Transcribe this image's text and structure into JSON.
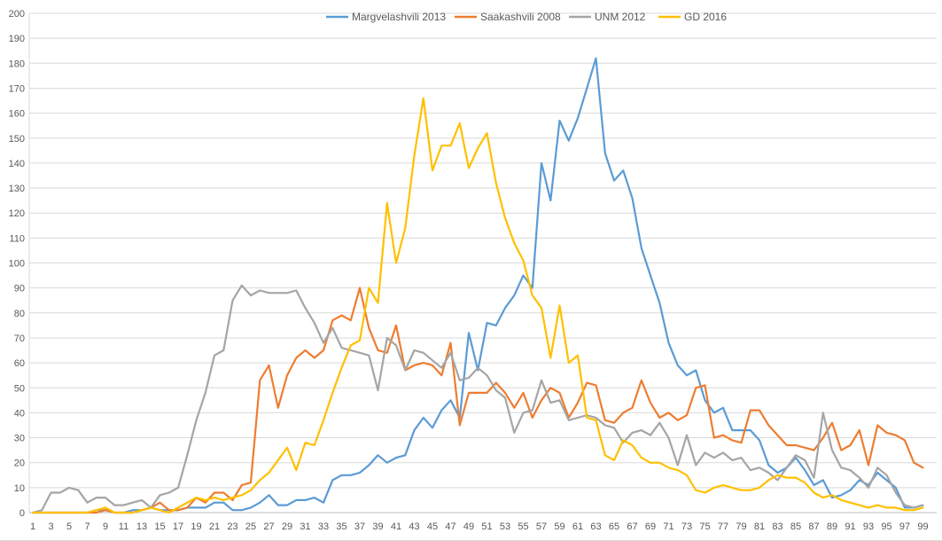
{
  "chart_data": {
    "type": "line",
    "title": "",
    "x_min": 1,
    "x_max": 99,
    "x_tick_step": 2,
    "x_tick_labels": [
      "1",
      "3",
      "5",
      "7",
      "9",
      "11",
      "13",
      "15",
      "17",
      "19",
      "21",
      "23",
      "25",
      "27",
      "29",
      "31",
      "33",
      "35",
      "37",
      "39",
      "41",
      "43",
      "45",
      "47",
      "49",
      "51",
      "53",
      "55",
      "57",
      "59",
      "61",
      "63",
      "65",
      "67",
      "69",
      "71",
      "73",
      "75",
      "77",
      "79",
      "81",
      "83",
      "85",
      "87",
      "89",
      "91",
      "93",
      "95",
      "97",
      "99"
    ],
    "y_ticks": [
      0,
      10,
      20,
      30,
      40,
      50,
      60,
      70,
      80,
      90,
      100,
      110,
      120,
      130,
      140,
      150,
      160,
      170,
      180,
      190,
      200
    ],
    "ylim": [
      0,
      200
    ],
    "grid": "horizontal",
    "legend_position": "top-center",
    "background_color": "#ffffff",
    "gridline_color": "#d9d9d9",
    "axis_line_color": "#bfbfbf",
    "axis_label_color": "#595959",
    "series": [
      {
        "name": "Margvelashvili 2013",
        "color": "#5b9bd5",
        "values": [
          0,
          0,
          0,
          0,
          0,
          0,
          0,
          1,
          1,
          0,
          0,
          1,
          1,
          2,
          1,
          1,
          1,
          2,
          2,
          2,
          4,
          4,
          1,
          1,
          2,
          4,
          7,
          3,
          3,
          5,
          5,
          6,
          4,
          13,
          15,
          15,
          16,
          19,
          23,
          20,
          22,
          23,
          33,
          38,
          34,
          41,
          45,
          38,
          72,
          57,
          76,
          75,
          82,
          87,
          95,
          90,
          140,
          125,
          157,
          149,
          158,
          170,
          182,
          144,
          133,
          137,
          126,
          106,
          95,
          84,
          68,
          59,
          55,
          57,
          45,
          40,
          42,
          33,
          33,
          33,
          29,
          19,
          16,
          18,
          22,
          17,
          11,
          13,
          6,
          7,
          9,
          13,
          11,
          16,
          13,
          10,
          2,
          2,
          3
        ]
      },
      {
        "name": "Saakashvili 2008",
        "color": "#ed7d31",
        "values": [
          0,
          0,
          0,
          0,
          0,
          0,
          0,
          0,
          1,
          0,
          0,
          0,
          1,
          2,
          4,
          1,
          1,
          2,
          6,
          4,
          8,
          8,
          5,
          11,
          12,
          53,
          59,
          42,
          55,
          62,
          65,
          62,
          65,
          77,
          79,
          77,
          90,
          74,
          65,
          64,
          75,
          57,
          59,
          60,
          59,
          55,
          68,
          35,
          48,
          48,
          48,
          52,
          48,
          42,
          48,
          38,
          45,
          50,
          48,
          38,
          44,
          52,
          51,
          37,
          36,
          40,
          42,
          53,
          44,
          38,
          40,
          37,
          39,
          50,
          51,
          30,
          31,
          29,
          28,
          41,
          41,
          35,
          31,
          27,
          27,
          26,
          25,
          30,
          36,
          25,
          27,
          33,
          19,
          35,
          32,
          31,
          29,
          20,
          18
        ]
      },
      {
        "name": "UNM 2012",
        "color": "#a5a5a5",
        "values": [
          0,
          1,
          8,
          8,
          10,
          9,
          4,
          6,
          6,
          3,
          3,
          4,
          5,
          2,
          7,
          8,
          10,
          23,
          37,
          48,
          63,
          65,
          85,
          91,
          87,
          89,
          88,
          88,
          88,
          89,
          82,
          76,
          68,
          74,
          66,
          65,
          64,
          63,
          49,
          70,
          67,
          57,
          65,
          64,
          61,
          58,
          64,
          53,
          54,
          58,
          55,
          49,
          46,
          32,
          40,
          41,
          53,
          44,
          45,
          37,
          38,
          39,
          38,
          35,
          34,
          28,
          32,
          33,
          31,
          36,
          30,
          19,
          31,
          19,
          24,
          22,
          24,
          21,
          22,
          17,
          18,
          16,
          13,
          18,
          23,
          21,
          14,
          40,
          25,
          18,
          17,
          14,
          10,
          18,
          15,
          8,
          3,
          2,
          3
        ]
      },
      {
        "name": "GD 2016",
        "color": "#ffc000",
        "values": [
          0,
          0,
          0,
          0,
          0,
          0,
          0,
          1,
          2,
          0,
          0,
          0,
          1,
          2,
          1,
          0,
          2,
          4,
          6,
          5,
          6,
          5,
          6,
          7,
          9,
          13,
          16,
          21,
          26,
          17,
          28,
          27,
          37,
          48,
          58,
          67,
          69,
          90,
          84,
          124,
          100,
          114,
          143,
          166,
          137,
          147,
          147,
          156,
          138,
          146,
          152,
          132,
          118,
          108,
          101,
          87,
          82,
          62,
          83,
          60,
          63,
          38,
          37,
          23,
          21,
          29,
          27,
          22,
          20,
          20,
          18,
          17,
          15,
          9,
          8,
          10,
          11,
          10,
          9,
          9,
          10,
          13,
          15,
          14,
          14,
          12,
          8,
          6,
          7,
          5,
          4,
          3,
          2,
          3,
          2,
          2,
          1,
          1,
          2
        ]
      }
    ]
  }
}
